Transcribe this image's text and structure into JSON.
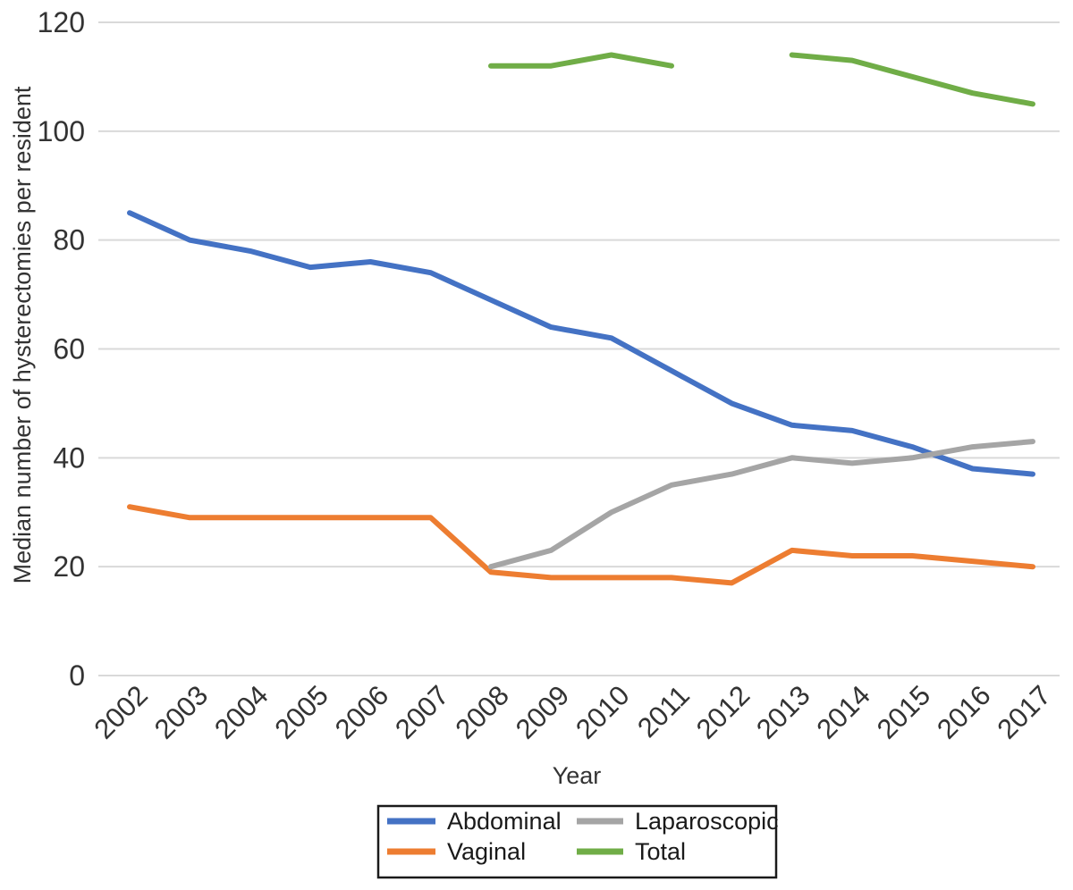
{
  "chart_data": {
    "type": "line",
    "x": [
      "2002",
      "2003",
      "2004",
      "2005",
      "2006",
      "2007",
      "2008",
      "2009",
      "2010",
      "2011",
      "2012",
      "2013",
      "2014",
      "2015",
      "2016",
      "2017"
    ],
    "series": [
      {
        "name": "Abdominal",
        "color": "#4472C4",
        "values": [
          85,
          80,
          78,
          75,
          76,
          74,
          69,
          64,
          62,
          56,
          50,
          46,
          45,
          42,
          38,
          37
        ]
      },
      {
        "name": "Vaginal",
        "color": "#ED7D31",
        "values": [
          31,
          29,
          29,
          29,
          29,
          29,
          19,
          18,
          18,
          18,
          17,
          23,
          22,
          22,
          21,
          20
        ]
      },
      {
        "name": "Laparoscopic",
        "color": "#A5A5A5",
        "values": [
          null,
          null,
          null,
          null,
          null,
          null,
          20,
          23,
          30,
          35,
          37,
          40,
          39,
          40,
          42,
          43
        ]
      },
      {
        "name": "Total",
        "color": "#70AD47",
        "values": [
          null,
          null,
          null,
          null,
          null,
          null,
          112,
          112,
          114,
          112,
          null,
          114,
          113,
          110,
          107,
          105
        ]
      }
    ],
    "title": "",
    "xlabel": "Year",
    "ylabel": "Median number of hysterectomies per resident",
    "ylim": [
      0,
      120
    ],
    "yticks": [
      0,
      20,
      40,
      60,
      80,
      100,
      120
    ],
    "grid": true,
    "gridline_color": "#D9D9D9",
    "legend_position": "bottom",
    "legend_border_color": "#1a1a1a",
    "legend_rows": [
      [
        "Abdominal",
        "Laparoscopic"
      ],
      [
        "Vaginal",
        "Total"
      ]
    ]
  }
}
